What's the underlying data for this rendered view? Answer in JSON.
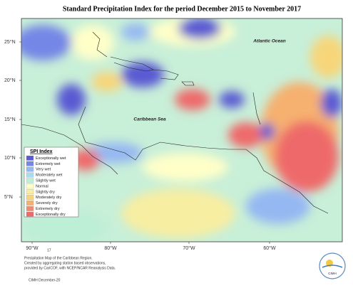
{
  "header": {
    "title": "Standard Precipitation Index for the period December 2015 to November 2017"
  },
  "map": {
    "lat_labels": [
      "25°N",
      "20°N",
      "15°N",
      "10°N",
      "5°N"
    ],
    "lon_labels": [
      "90°W",
      "80°W",
      "70°W",
      "60°W"
    ],
    "places": [
      "Atlantic Ocean",
      "Caribbean Sea"
    ]
  },
  "legend": {
    "title": "SPI Index",
    "items": [
      {
        "label": "Exceptionally wet",
        "color": "#5a5ad2"
      },
      {
        "label": "Extremely wet",
        "color": "#7486e6"
      },
      {
        "label": "Very wet",
        "color": "#95b8f2"
      },
      {
        "label": "Moderately wet",
        "color": "#a9dcef"
      },
      {
        "label": "Slightly wet",
        "color": "#bdeed6"
      },
      {
        "label": "Normal",
        "color": "#ffffc8"
      },
      {
        "label": "Slightly dry",
        "color": "#f7eea2"
      },
      {
        "label": "Moderately dry",
        "color": "#f7d67a"
      },
      {
        "label": "Severely dry",
        "color": "#f6b070"
      },
      {
        "label": "Extremely dry",
        "color": "#f08a72"
      },
      {
        "label": "Exceptionally dry",
        "color": "#ee6a6a"
      }
    ]
  },
  "footer": {
    "page": "17",
    "lines": [
      "Precipitation Map of the Caribbean Region.",
      "Created by aggregating station based observations,",
      "provided by CariCOF, with NCEP/NCAR Reanalysis Data."
    ],
    "credit": "CIMH December-20",
    "logo": "CIMH"
  }
}
